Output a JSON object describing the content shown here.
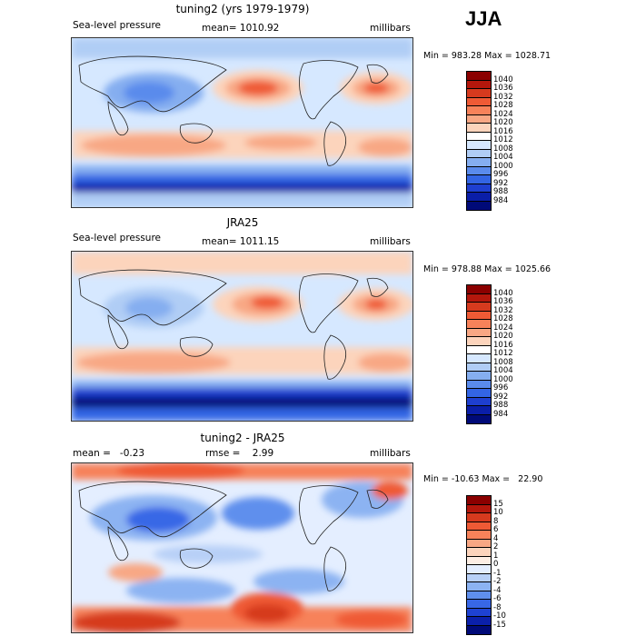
{
  "season": "JJA",
  "panels": [
    {
      "title": "tuning2 (yrs 1979-1979)",
      "left_label": "Sea-level pressure",
      "center_label": "mean= 1010.92",
      "units": "millibars",
      "minmax": "Min = 983.28 Max = 1028.71",
      "colorbar": {
        "labels": [
          "1040",
          "1036",
          "1032",
          "1028",
          "1024",
          "1020",
          "1016",
          "1012",
          "1008",
          "1004",
          "1000",
          "996",
          "992",
          "988",
          "984"
        ],
        "colors": [
          "#8b0000",
          "#b4170c",
          "#d63a1e",
          "#ef5a35",
          "#f7825a",
          "#f8a784",
          "#fcd4bc",
          "#ffffff",
          "#d6e8ff",
          "#b0cdf5",
          "#85aef0",
          "#5a8bec",
          "#3365e4",
          "#1e3fd0",
          "#0a1ea8",
          "#000a78"
        ]
      }
    },
    {
      "title": "JRA25",
      "left_label": "Sea-level pressure",
      "center_label": "mean= 1011.15",
      "units": "millibars",
      "minmax": "Min = 978.88 Max = 1025.66",
      "colorbar": {
        "labels": [
          "1040",
          "1036",
          "1032",
          "1028",
          "1024",
          "1020",
          "1016",
          "1012",
          "1008",
          "1004",
          "1000",
          "996",
          "992",
          "988",
          "984"
        ],
        "colors": [
          "#8b0000",
          "#b4170c",
          "#d63a1e",
          "#ef5a35",
          "#f7825a",
          "#f8a784",
          "#fcd4bc",
          "#ffffff",
          "#d6e8ff",
          "#b0cdf5",
          "#85aef0",
          "#5a8bec",
          "#3365e4",
          "#1e3fd0",
          "#0a1ea8",
          "#000a78"
        ]
      }
    },
    {
      "title": "tuning2 - JRA25",
      "left_label": "mean =   -0.23",
      "center_label": "rmse =    2.99",
      "units": "millibars",
      "minmax": "Min = -10.63 Max =   22.90",
      "colorbar": {
        "labels": [
          "15",
          "10",
          "8",
          "6",
          "4",
          "2",
          "1",
          "0",
          "-1",
          "-2",
          "-4",
          "-6",
          "-8",
          "-10",
          "-15"
        ],
        "colors": [
          "#8b0000",
          "#b4170c",
          "#d63a1e",
          "#ef5a35",
          "#f7825a",
          "#f8a784",
          "#fcd4bc",
          "#fdeee4",
          "#e4eeff",
          "#b8d0f7",
          "#8cb3f2",
          "#5f8fed",
          "#3867e6",
          "#1e42d2",
          "#0b20aa",
          "#000a78"
        ]
      }
    }
  ]
}
